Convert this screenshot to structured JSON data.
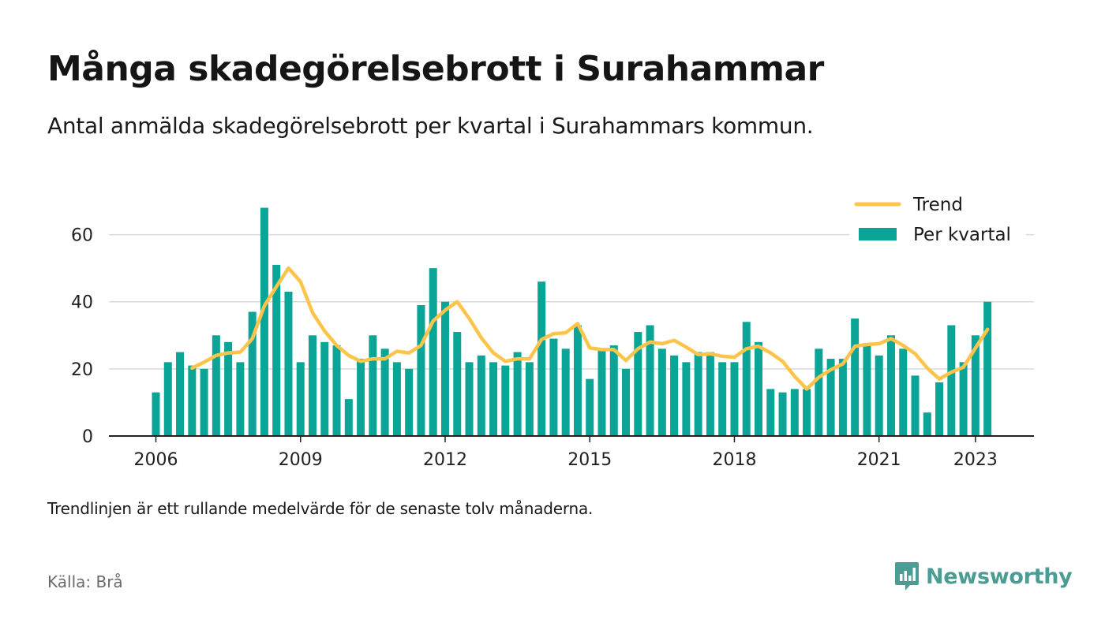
{
  "title": "Många skadegörelsebrott i Surahammar",
  "subtitle": "Antal anmälda skadegörelsebrott per kvartal i Surahammars kommun.",
  "note": "Trendlinjen är ett rullande medelvärde för de senaste tolv månaderna.",
  "source": "Källa: Brå",
  "brand": {
    "name": "Newsworthy",
    "icon": "newsworthy-logo-icon"
  },
  "colors": {
    "bars": "#0aa597",
    "trend": "#fcc44b",
    "grid": "#dadada",
    "axis": "#222222",
    "brand": "#4b9d94"
  },
  "chart_data": {
    "type": "bar",
    "x_unit": "quarter",
    "start": "2006 Q1",
    "ylim": [
      0,
      70
    ],
    "yticks": [
      0,
      20,
      40,
      60
    ],
    "xticks": [
      "2006",
      "2009",
      "2012",
      "2015",
      "2018",
      "2021",
      "2023"
    ],
    "grid": true,
    "legend_position": "top-right",
    "series": [
      {
        "name": "Per kvartal",
        "type": "bar",
        "values": [
          13,
          22,
          25,
          21,
          20,
          30,
          28,
          22,
          37,
          68,
          51,
          43,
          22,
          30,
          28,
          27,
          11,
          23,
          30,
          26,
          22,
          20,
          39,
          50,
          40,
          31,
          22,
          24,
          22,
          21,
          25,
          22,
          46,
          29,
          26,
          33,
          17,
          26,
          27,
          20,
          31,
          33,
          26,
          24,
          22,
          25,
          25,
          22,
          22,
          34,
          28,
          14,
          13,
          14,
          14,
          26,
          23,
          23,
          35,
          27,
          24,
          30,
          26,
          18,
          7,
          16,
          33,
          22,
          30,
          40
        ]
      },
      {
        "name": "Trend",
        "type": "line",
        "values": [
          null,
          null,
          null,
          20.25,
          22,
          24,
          24.75,
          25,
          29,
          38.75,
          44.5,
          50,
          46,
          36.75,
          31.25,
          27,
          24,
          22.25,
          23,
          23,
          25.25,
          24.75,
          27,
          34.25,
          37.5,
          40,
          35,
          29.25,
          24.75,
          22.25,
          23,
          23,
          28.75,
          30.5,
          30.75,
          33.5,
          26.25,
          25.75,
          25.75,
          22.5,
          26,
          28,
          27.5,
          28.5,
          26.5,
          24.25,
          24.5,
          23.75,
          23.5,
          26,
          26.75,
          24.75,
          22.25,
          17.75,
          14,
          17.5,
          19.75,
          21.5,
          26.75,
          27.25,
          27.5,
          29,
          27,
          24.5,
          20.25,
          17,
          19,
          20.5,
          26.25,
          31.75
        ]
      }
    ]
  }
}
